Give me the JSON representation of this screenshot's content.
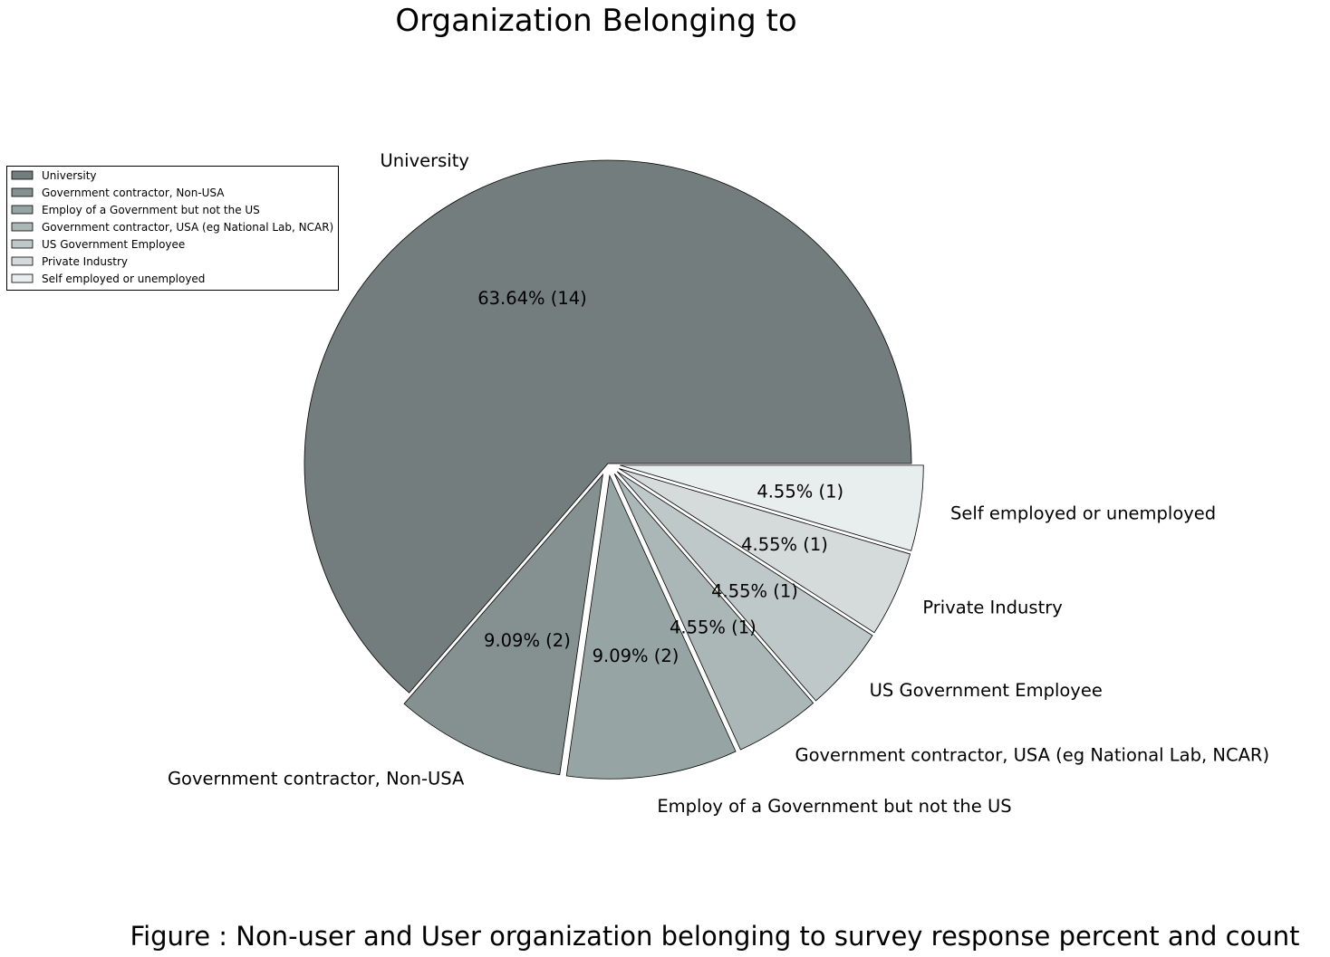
{
  "chart_data": {
    "type": "pie",
    "title": "Organization Belonging to",
    "caption": "Figure : Non-user and User organization belonging to survey response percent and count",
    "legend_position": "left",
    "slices": [
      {
        "label": "University",
        "count": 14,
        "percent_label": "63.64%  (14)",
        "color": "#737d7d",
        "exploded": false
      },
      {
        "label": "Government contractor, Non-USA",
        "count": 2,
        "percent_label": "9.09%  (2)",
        "color": "#859191",
        "exploded": true
      },
      {
        "label": "Employ of a Government but not the US",
        "count": 2,
        "percent_label": "9.09%  (2)",
        "color": "#97a4a4",
        "exploded": true
      },
      {
        "label": "Government contractor, USA (eg National Lab, NCAR)",
        "count": 1,
        "percent_label": "4.55%  (1)",
        "color": "#abb6b6",
        "exploded": true
      },
      {
        "label": "US Government Employee",
        "count": 1,
        "percent_label": "4.55%  (1)",
        "color": "#bfc8c8",
        "exploded": true
      },
      {
        "label": "Private Industry",
        "count": 1,
        "percent_label": "4.55%  (1)",
        "color": "#d5dbdb",
        "exploded": true
      },
      {
        "label": "Self employed or unemployed",
        "count": 1,
        "percent_label": "4.55%  (1)",
        "color": "#e8eded",
        "exploded": true
      }
    ]
  }
}
